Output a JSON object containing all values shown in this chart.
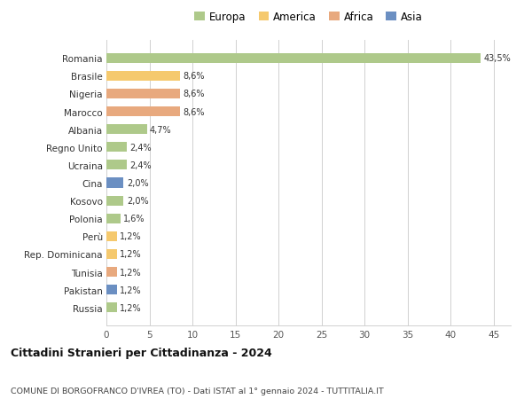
{
  "countries": [
    "Romania",
    "Brasile",
    "Nigeria",
    "Marocco",
    "Albania",
    "Regno Unito",
    "Ucraina",
    "Cina",
    "Kosovo",
    "Polonia",
    "Perù",
    "Rep. Dominicana",
    "Tunisia",
    "Pakistan",
    "Russia"
  ],
  "values": [
    43.5,
    8.6,
    8.6,
    8.6,
    4.7,
    2.4,
    2.4,
    2.0,
    2.0,
    1.6,
    1.2,
    1.2,
    1.2,
    1.2,
    1.2
  ],
  "labels": [
    "43,5%",
    "8,6%",
    "8,6%",
    "8,6%",
    "4,7%",
    "2,4%",
    "2,4%",
    "2,0%",
    "2,0%",
    "1,6%",
    "1,2%",
    "1,2%",
    "1,2%",
    "1,2%",
    "1,2%"
  ],
  "colors": [
    "#aec98a",
    "#f5c96e",
    "#e8a97e",
    "#e8a97e",
    "#aec98a",
    "#aec98a",
    "#aec98a",
    "#6b8fc2",
    "#aec98a",
    "#aec98a",
    "#f5c96e",
    "#f5c96e",
    "#e8a97e",
    "#6b8fc2",
    "#aec98a"
  ],
  "legend": [
    {
      "label": "Europa",
      "color": "#aec98a"
    },
    {
      "label": "America",
      "color": "#f5c96e"
    },
    {
      "label": "Africa",
      "color": "#e8a97e"
    },
    {
      "label": "Asia",
      "color": "#6b8fc2"
    }
  ],
  "title": "Cittadini Stranieri per Cittadinanza - 2024",
  "subtitle": "COMUNE DI BORGOFRANCO D'IVREA (TO) - Dati ISTAT al 1° gennaio 2024 - TUTTITALIA.IT",
  "xlim": [
    0,
    47
  ],
  "xticks": [
    0,
    5,
    10,
    15,
    20,
    25,
    30,
    35,
    40,
    45
  ],
  "bg_color": "#ffffff",
  "grid_color": "#d0d0d0",
  "bar_height": 0.55
}
